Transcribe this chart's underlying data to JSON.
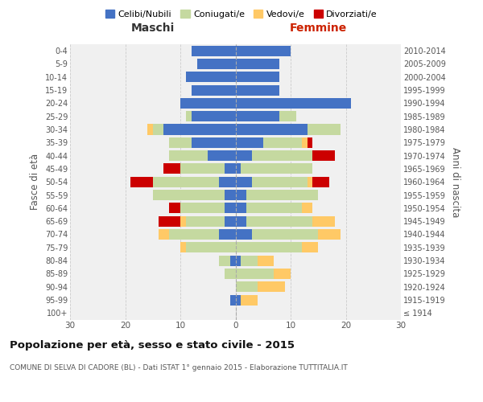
{
  "age_groups": [
    "100+",
    "95-99",
    "90-94",
    "85-89",
    "80-84",
    "75-79",
    "70-74",
    "65-69",
    "60-64",
    "55-59",
    "50-54",
    "45-49",
    "40-44",
    "35-39",
    "30-34",
    "25-29",
    "20-24",
    "15-19",
    "10-14",
    "5-9",
    "0-4"
  ],
  "birth_years": [
    "≤ 1914",
    "1915-1919",
    "1920-1924",
    "1925-1929",
    "1930-1934",
    "1935-1939",
    "1940-1944",
    "1945-1949",
    "1950-1954",
    "1955-1959",
    "1960-1964",
    "1965-1969",
    "1970-1974",
    "1975-1979",
    "1980-1984",
    "1985-1989",
    "1990-1994",
    "1995-1999",
    "2000-2004",
    "2005-2009",
    "2010-2014"
  ],
  "male": {
    "celibi": [
      0,
      1,
      0,
      0,
      1,
      0,
      3,
      2,
      2,
      2,
      3,
      2,
      5,
      8,
      13,
      8,
      10,
      8,
      9,
      7,
      8
    ],
    "coniugati": [
      0,
      0,
      0,
      2,
      2,
      9,
      9,
      7,
      8,
      13,
      12,
      8,
      7,
      4,
      2,
      1,
      0,
      0,
      0,
      0,
      0
    ],
    "vedovi": [
      0,
      0,
      0,
      0,
      0,
      1,
      2,
      1,
      0,
      0,
      0,
      0,
      0,
      0,
      1,
      0,
      0,
      0,
      0,
      0,
      0
    ],
    "divorziati": [
      0,
      0,
      0,
      0,
      0,
      0,
      0,
      4,
      2,
      0,
      4,
      3,
      0,
      0,
      0,
      0,
      0,
      0,
      0,
      0,
      0
    ]
  },
  "female": {
    "nubili": [
      0,
      1,
      0,
      0,
      1,
      0,
      3,
      2,
      2,
      2,
      3,
      1,
      3,
      5,
      13,
      8,
      21,
      8,
      8,
      8,
      10
    ],
    "coniugate": [
      0,
      0,
      4,
      7,
      3,
      12,
      12,
      12,
      10,
      13,
      10,
      13,
      11,
      7,
      6,
      3,
      0,
      0,
      0,
      0,
      0
    ],
    "vedove": [
      0,
      3,
      5,
      3,
      3,
      3,
      4,
      4,
      2,
      0,
      1,
      0,
      0,
      1,
      0,
      0,
      0,
      0,
      0,
      0,
      0
    ],
    "divorziate": [
      0,
      0,
      0,
      0,
      0,
      0,
      0,
      0,
      0,
      0,
      3,
      0,
      4,
      1,
      0,
      0,
      0,
      0,
      0,
      0,
      0
    ]
  },
  "colors": {
    "celibi": "#4472c4",
    "coniugati": "#c5d9a0",
    "vedovi": "#ffc966",
    "divorziati": "#cc0000"
  },
  "xlim": 30,
  "title": "Popolazione per età, sesso e stato civile - 2015",
  "subtitle": "COMUNE DI SELVA DI CADORE (BL) - Dati ISTAT 1° gennaio 2015 - Elaborazione TUTTITALIA.IT",
  "xlabel_left": "Maschi",
  "xlabel_right": "Femmine",
  "ylabel_left": "Fasce di età",
  "ylabel_right": "Anni di nascita",
  "legend_labels": [
    "Celibi/Nubili",
    "Coniugati/e",
    "Vedovi/e",
    "Divorziati/e"
  ],
  "background_color": "#f0f0f0"
}
